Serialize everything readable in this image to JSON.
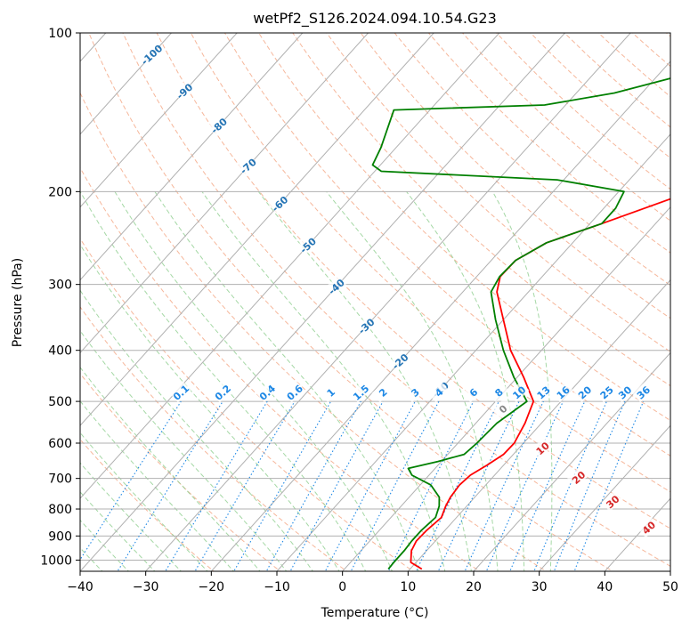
{
  "chart_data": {
    "type": "line",
    "subtype": "skew-t log-p diagram",
    "title": "wetPf2_S126.2024.094.10.54.G23",
    "xlabel": "Temperature (°C)",
    "ylabel": "Pressure (hPa)",
    "xlim": [
      -40,
      50
    ],
    "ylim_hpa": [
      1050,
      100
    ],
    "y_scale": "log",
    "x_ticks": [
      -40,
      -30,
      -20,
      -10,
      0,
      10,
      20,
      30,
      40,
      50
    ],
    "y_ticks": [
      100,
      200,
      300,
      400,
      500,
      600,
      700,
      800,
      900,
      1000
    ],
    "grid": true,
    "colors": {
      "temperature": "#ff0000",
      "dewpoint": "#008000",
      "isotherm": "#b0b0b0",
      "isobar": "#b0b0b0",
      "dry_adiabat": "#f4a582",
      "moist_adiabat": "#8fce8f",
      "mixing_ratio": "#1e88e5",
      "dry_adiabat_label": "#d62728",
      "isotherm_label": "#2474b5",
      "mixing_label": "#1e88e5"
    },
    "series": [
      {
        "name": "temperature",
        "points": [
          [
            1040,
            11.8
          ],
          [
            1010,
            9.2
          ],
          [
            960,
            7.7
          ],
          [
            920,
            7.1
          ],
          [
            880,
            7.2
          ],
          [
            830,
            7.7
          ],
          [
            790,
            6.8
          ],
          [
            760,
            6.3
          ],
          [
            720,
            6.0
          ],
          [
            690,
            6.3
          ],
          [
            660,
            7.5
          ],
          [
            630,
            8.5
          ],
          [
            600,
            8.6
          ],
          [
            550,
            7.5
          ],
          [
            500,
            5.8
          ],
          [
            450,
            1.0
          ],
          [
            400,
            -4.7
          ],
          [
            350,
            -10.0
          ],
          [
            310,
            -14.8
          ],
          [
            290,
            -16.4
          ],
          [
            270,
            -16.3
          ],
          [
            250,
            -14.0
          ],
          [
            230,
            -8.2
          ],
          [
            200,
            1.0
          ],
          [
            180,
            11.0
          ],
          [
            170,
            17.5
          ],
          [
            160,
            21.0
          ],
          [
            150,
            22.0
          ],
          [
            140,
            21.0
          ],
          [
            130,
            17.3
          ],
          [
            120,
            14.4
          ],
          [
            110,
            14.2
          ],
          [
            103,
            15.4
          ],
          [
            100,
            17.5
          ]
        ]
      },
      {
        "name": "dewpoint",
        "points": [
          [
            1040,
            6.7
          ],
          [
            1010,
            6.6
          ],
          [
            960,
            6.6
          ],
          [
            920,
            6.4
          ],
          [
            880,
            6.4
          ],
          [
            830,
            6.8
          ],
          [
            790,
            5.8
          ],
          [
            760,
            4.6
          ],
          [
            720,
            1.6
          ],
          [
            690,
            -2.6
          ],
          [
            670,
            -4.1
          ],
          [
            650,
            -0.5
          ],
          [
            630,
            2.5
          ],
          [
            600,
            2.9
          ],
          [
            550,
            3.2
          ],
          [
            500,
            4.8
          ],
          [
            450,
            -0.5
          ],
          [
            400,
            -5.8
          ],
          [
            350,
            -11.2
          ],
          [
            310,
            -15.7
          ],
          [
            290,
            -16.5
          ],
          [
            270,
            -16.3
          ],
          [
            250,
            -14.0
          ],
          [
            230,
            -8.2
          ],
          [
            215,
            -8.2
          ],
          [
            200,
            -9.2
          ],
          [
            190,
            -21.0
          ],
          [
            183,
            -49.0
          ],
          [
            178,
            -51.2
          ],
          [
            165,
            -52.3
          ],
          [
            140,
            -55.5
          ],
          [
            137,
            -33.2
          ],
          [
            130,
            -24.2
          ],
          [
            120,
            -16.0
          ],
          [
            115,
            -17.2
          ],
          [
            110,
            -11.7
          ],
          [
            105,
            -4.4
          ],
          [
            100,
            -1.2
          ]
        ]
      }
    ],
    "isotherm_labels": [
      -100,
      -90,
      -80,
      -70,
      -60,
      -50,
      -40,
      -30,
      -20,
      -10
    ],
    "mixing_ratio_labels": [
      "0.1",
      "0.2",
      "0.4",
      "0.6",
      "1",
      "1.5",
      "2",
      "3",
      "4",
      "6",
      "8",
      "10",
      "13",
      "16",
      "20",
      "25",
      "30",
      "36"
    ],
    "dry_adiabat_labels": [
      "0",
      "10",
      "20",
      "30",
      "40"
    ]
  }
}
